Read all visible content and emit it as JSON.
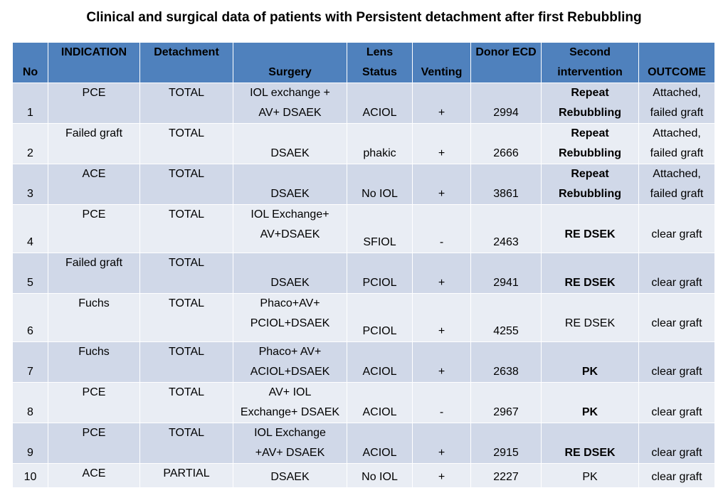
{
  "title": "Clinical and surgical data of patients with Persistent detachment after first Rebubbling",
  "headers": {
    "no": "No",
    "indication": "INDICATION",
    "detachment": "Detachment",
    "surgery": "Surgery",
    "lens_1": "Lens",
    "lens_2": "Status",
    "venting": "Venting",
    "donor_1": "Donor",
    "donor_2": "ECD",
    "second_1": "Second",
    "second_2": "intervention",
    "outcome": "OUTCOME"
  },
  "rows": [
    {
      "no": "1",
      "indication": "PCE",
      "detachment": "TOTAL",
      "surgery_1": "IOL exchange +",
      "surgery_2": "AV+ DSAEK",
      "lens": "ACIOL",
      "venting": "+",
      "ecd": "2994",
      "second_1": "Repeat",
      "second_2": "Rebubbling",
      "outcome_1": "Attached,",
      "outcome_2": "failed graft"
    },
    {
      "no": "2",
      "indication": "Failed graft",
      "detachment": "TOTAL",
      "surgery_1": "",
      "surgery_2": "DSAEK",
      "lens": "phakic",
      "venting": "+",
      "ecd": "2666",
      "second_1": "Repeat",
      "second_2": "Rebubbling",
      "outcome_1": "Attached,",
      "outcome_2": "failed graft"
    },
    {
      "no": "3",
      "indication": "ACE",
      "detachment": "TOTAL",
      "surgery_1": "",
      "surgery_2": "DSAEK",
      "lens": "No IOL",
      "venting": "+",
      "ecd": "3861",
      "second_1": "Repeat",
      "second_2": "Rebubbling",
      "outcome_1": "Attached,",
      "outcome_2": "failed graft"
    },
    {
      "no": "4",
      "indication": "PCE",
      "detachment": "TOTAL",
      "surgery_1": "IOL Exchange+",
      "surgery_2": "AV+DSAEK",
      "lens": "SFIOL",
      "venting": "-",
      "ecd": "2463",
      "second_1": "",
      "second_2": "RE DSEK",
      "outcome_1": "",
      "outcome_2": "clear graft"
    },
    {
      "no": "5",
      "indication": "Failed graft",
      "detachment": "TOTAL",
      "surgery_1": "",
      "surgery_2": "DSAEK",
      "lens": "PCIOL",
      "venting": "+",
      "ecd": "2941",
      "second_1": "",
      "second_2": "RE DSEK",
      "outcome_1": "",
      "outcome_2": "clear graft"
    },
    {
      "no": "6",
      "indication": "Fuchs",
      "detachment": "TOTAL",
      "surgery_1": "Phaco+AV+",
      "surgery_2": "PCIOL+DSAEK",
      "lens": "PCIOL",
      "venting": "+",
      "ecd": "4255",
      "second_1": "",
      "second_2": "RE DSEK",
      "outcome_1": "",
      "outcome_2": "clear graft"
    },
    {
      "no": "7",
      "indication": "Fuchs",
      "detachment": "TOTAL",
      "surgery_1": "Phaco+ AV+",
      "surgery_2": "ACIOL+DSAEK",
      "lens": "ACIOL",
      "venting": "+",
      "ecd": "2638",
      "second_1": "",
      "second_2": "PK",
      "outcome_1": "",
      "outcome_2": "clear graft"
    },
    {
      "no": "8",
      "indication": "PCE",
      "detachment": "TOTAL",
      "surgery_1": "AV+ IOL",
      "surgery_2": "Exchange+ DSAEK",
      "lens": "ACIOL",
      "venting": "-",
      "ecd": "2967",
      "second_1": "",
      "second_2": "PK",
      "outcome_1": "",
      "outcome_2": "clear graft"
    },
    {
      "no": "9",
      "indication": "PCE",
      "detachment": "TOTAL",
      "surgery_1": "IOL Exchange",
      "surgery_2": "+AV+ DSAEK",
      "lens": "ACIOL",
      "venting": "+",
      "ecd": "2915",
      "second_1": "",
      "second_2": "RE DSEK",
      "outcome_1": "",
      "outcome_2": "clear graft"
    },
    {
      "no": "10",
      "indication": "ACE",
      "detachment": "PARTIAL",
      "surgery_1": "",
      "surgery_2": "DSAEK",
      "lens": "No IOL",
      "venting": "+",
      "ecd": "2227",
      "second_1": "",
      "second_2": "PK",
      "outcome_1": "",
      "outcome_2": "clear graft"
    }
  ]
}
